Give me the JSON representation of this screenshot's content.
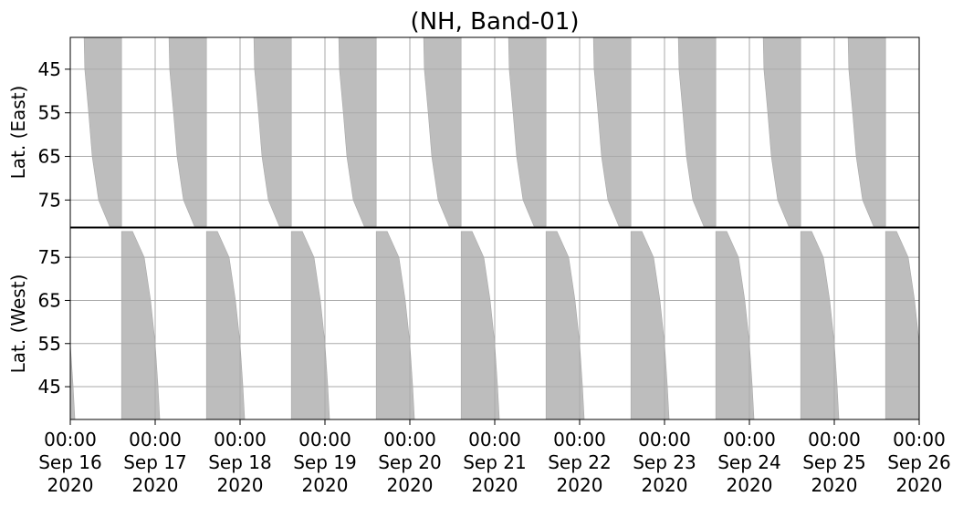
{
  "chart_data": {
    "type": "coverage",
    "title": "(NH, Band-01)",
    "color": "#bdbdbd",
    "grid": true,
    "xlim": [
      0,
      240
    ],
    "xticks": [
      {
        "value": 0,
        "label": "00:00\nSep 16\n2020"
      },
      {
        "value": 24,
        "label": "00:00\nSep 17\n2020"
      },
      {
        "value": 48,
        "label": "00:00\nSep 18\n2020"
      },
      {
        "value": 72,
        "label": "00:00\nSep 19\n2020"
      },
      {
        "value": 96,
        "label": "00:00\nSep 20\n2020"
      },
      {
        "value": 120,
        "label": "00:00\nSep 21\n2020"
      },
      {
        "value": 144,
        "label": "00:00\nSep 22\n2020"
      },
      {
        "value": 168,
        "label": "00:00\nSep 23\n2020"
      },
      {
        "value": 192,
        "label": "00:00\nSep 24\n2020"
      },
      {
        "value": 216,
        "label": "00:00\nSep 25\n2020"
      },
      {
        "value": 240,
        "label": "00:00\nSep 26\n2020"
      }
    ],
    "panels": [
      {
        "ylabel": "Lat. (East)",
        "ylim": [
          37.7,
          81.2
        ],
        "invert_y": true,
        "yticks": [
          45,
          55,
          65,
          75
        ],
        "lats": [
          37.7,
          45,
          55,
          65,
          75,
          81
        ],
        "bands": [
          {
            "left": [
              3.9,
              4.1,
              5.2,
              6.2,
              8.0,
              11.1
            ],
            "edge": 14.5
          },
          {
            "left": [
              27.9,
              28.1,
              29.2,
              30.2,
              32.0,
              35.1
            ],
            "edge": 38.5
          },
          {
            "left": [
              51.9,
              52.1,
              53.2,
              54.2,
              56.0,
              59.1
            ],
            "edge": 62.5
          },
          {
            "left": [
              75.9,
              76.1,
              77.2,
              78.2,
              80.0,
              83.1
            ],
            "edge": 86.5
          },
          {
            "left": [
              99.9,
              100.1,
              101.2,
              102.2,
              104.0,
              107.1
            ],
            "edge": 110.5
          },
          {
            "left": [
              123.9,
              124.1,
              125.2,
              126.2,
              128.0,
              131.1
            ],
            "edge": 134.5
          },
          {
            "left": [
              147.9,
              148.1,
              149.2,
              150.2,
              152.0,
              155.1
            ],
            "edge": 158.5
          },
          {
            "left": [
              171.9,
              172.1,
              173.2,
              174.2,
              176.0,
              179.1
            ],
            "edge": 182.5
          },
          {
            "left": [
              195.9,
              196.1,
              197.2,
              198.2,
              200.0,
              203.1
            ],
            "edge": 206.5
          },
          {
            "left": [
              219.9,
              220.1,
              221.2,
              222.2,
              224.0,
              227.1
            ],
            "edge": 230.5
          }
        ]
      },
      {
        "ylabel": "Lat. (West)",
        "ylim": [
          37.4,
          81.8
        ],
        "invert_y": false,
        "yticks": [
          45,
          55,
          65,
          75
        ],
        "lats": [
          81,
          75,
          65,
          55,
          45,
          37.4
        ],
        "bands": [
          {
            "edge": -9.5,
            "right": [
              -6.4,
              -3.1,
              -1.3,
              0,
              0.8,
              1.3
            ]
          },
          {
            "edge": 14.5,
            "right": [
              17.6,
              20.9,
              22.7,
              24.0,
              24.8,
              25.3
            ]
          },
          {
            "edge": 38.5,
            "right": [
              41.6,
              44.9,
              46.7,
              48.0,
              48.8,
              49.3
            ]
          },
          {
            "edge": 62.5,
            "right": [
              65.6,
              68.9,
              70.7,
              72.0,
              72.8,
              73.3
            ]
          },
          {
            "edge": 86.5,
            "right": [
              89.6,
              92.9,
              94.7,
              96.0,
              96.8,
              97.3
            ]
          },
          {
            "edge": 110.5,
            "right": [
              113.6,
              116.9,
              118.7,
              120.0,
              120.8,
              121.3
            ]
          },
          {
            "edge": 134.5,
            "right": [
              137.6,
              140.9,
              142.7,
              144.0,
              144.8,
              145.3
            ]
          },
          {
            "edge": 158.5,
            "right": [
              161.6,
              164.9,
              166.7,
              168.0,
              168.8,
              169.3
            ]
          },
          {
            "edge": 182.5,
            "right": [
              185.6,
              188.9,
              190.7,
              192.0,
              192.8,
              193.3
            ]
          },
          {
            "edge": 206.5,
            "right": [
              209.6,
              212.9,
              214.7,
              216.0,
              216.8,
              217.3
            ]
          },
          {
            "edge": 230.5,
            "right": [
              233.6,
              236.9,
              238.7,
              240.0,
              240.8,
              241.3
            ]
          }
        ]
      }
    ]
  }
}
